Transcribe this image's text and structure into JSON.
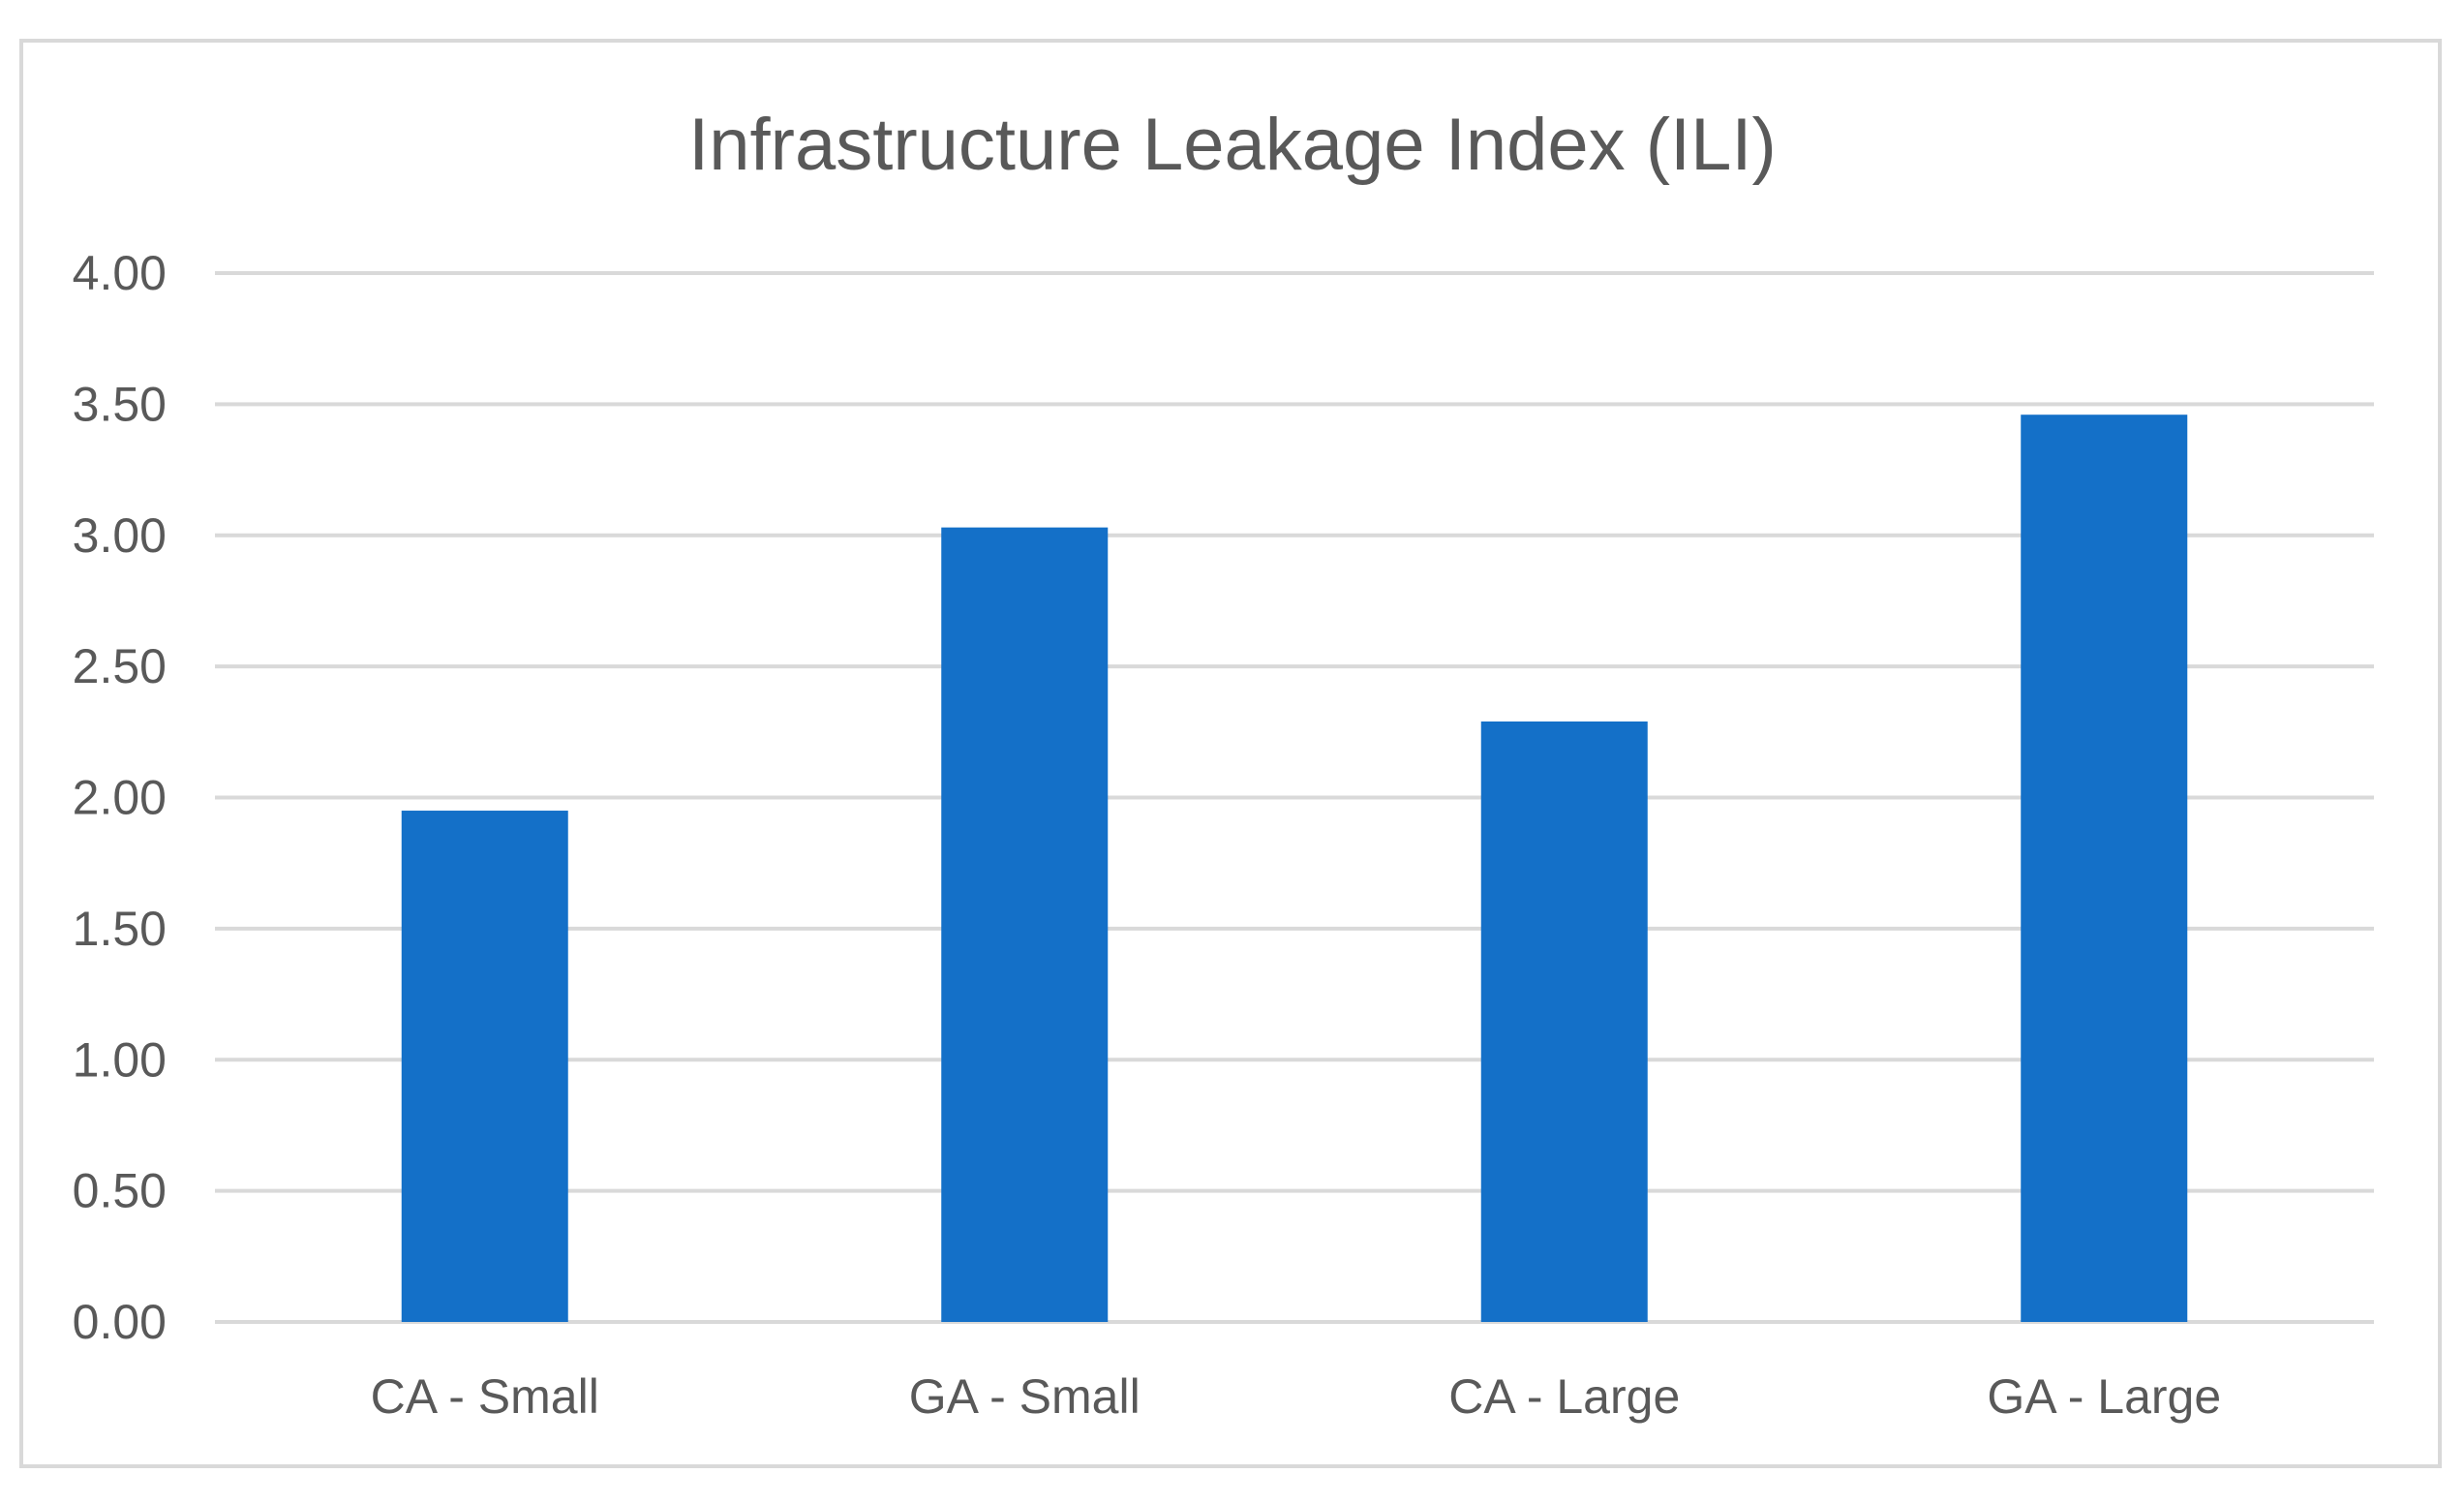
{
  "chart_data": {
    "type": "bar",
    "title": "Infrastructure Leakage Index (ILI)",
    "categories": [
      "CA - Small",
      "GA - Small",
      "CA - Large",
      "GA - Large"
    ],
    "values": [
      1.95,
      3.03,
      2.29,
      3.46
    ],
    "ylim": [
      0,
      4
    ],
    "yticks": [
      0,
      0.5,
      1,
      1.5,
      2,
      2.5,
      3,
      3.5,
      4
    ],
    "ytick_labels": [
      "0.00",
      "0.50",
      "1.00",
      "1.50",
      "2.00",
      "2.50",
      "3.00",
      "3.50",
      "4.00"
    ],
    "xlabel": "",
    "ylabel": "",
    "grid": true,
    "legend": "none",
    "bar_color": "#1470C8",
    "grid_color": "#d9d9d9",
    "text_color": "#595959"
  }
}
